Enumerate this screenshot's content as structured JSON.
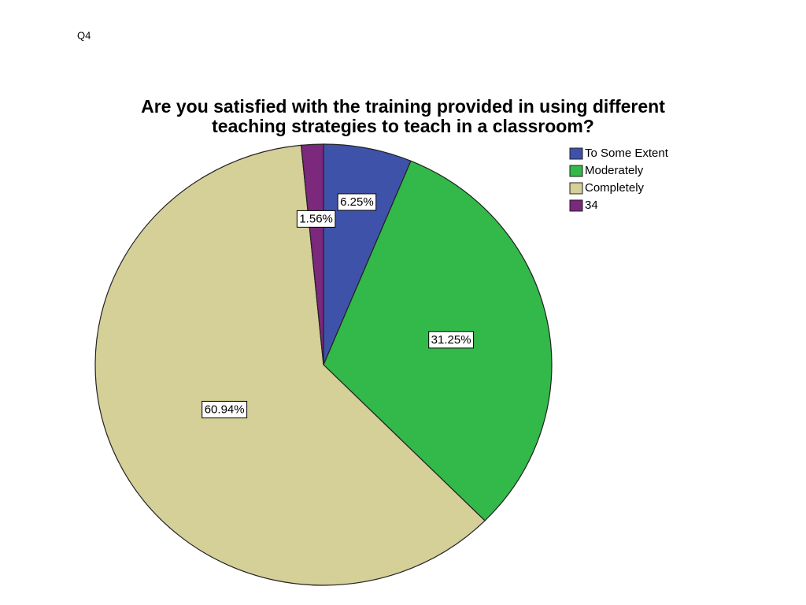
{
  "page_label": "Q4",
  "chart_data": {
    "type": "pie",
    "title": [
      "Are you satisfied with the training provided in using different",
      "teaching strategies to teach in a classroom?"
    ],
    "categories": [
      "To Some Extent",
      "Moderately",
      "Completely",
      "34"
    ],
    "values": [
      6.25,
      31.25,
      60.94,
      1.56
    ],
    "value_labels": [
      "6.25%",
      "31.25%",
      "60.94%",
      "1.56%"
    ],
    "colors": [
      "#3f52a9",
      "#33b84a",
      "#d5cf98",
      "#7b287d"
    ]
  }
}
